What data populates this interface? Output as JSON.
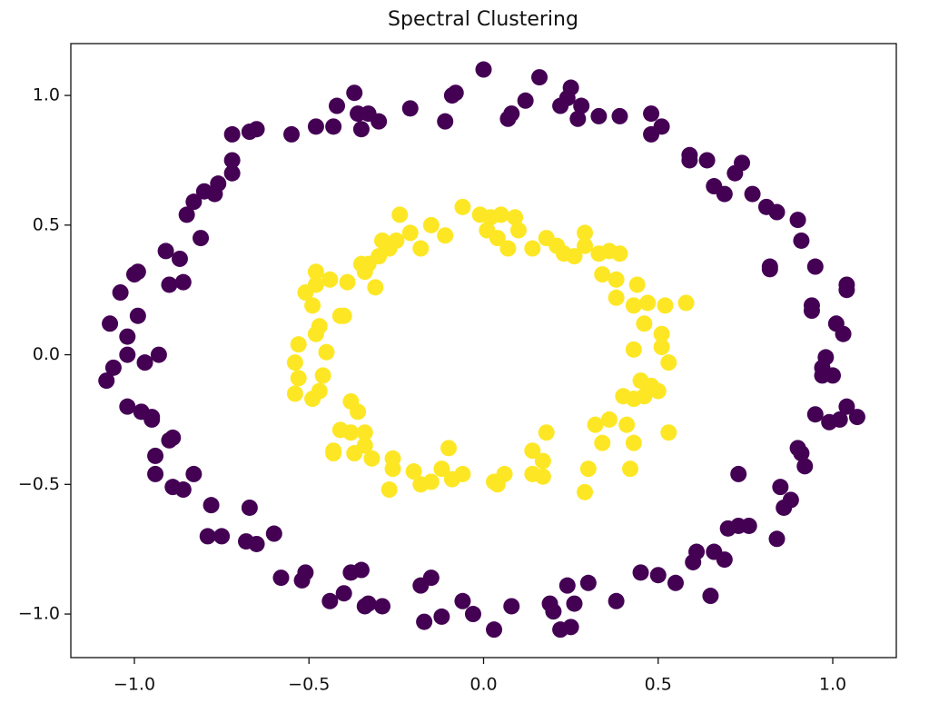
{
  "chart_data": {
    "type": "scatter",
    "title": "Spectral Clustering",
    "xlim": [
      -1.182,
      1.182
    ],
    "ylim": [
      -1.168,
      1.2
    ],
    "xticks": [
      {
        "value": -1.0,
        "label": "−1.0"
      },
      {
        "value": -0.5,
        "label": "−0.5"
      },
      {
        "value": 0.0,
        "label": "0.0"
      },
      {
        "value": 0.5,
        "label": "0.5"
      },
      {
        "value": 1.0,
        "label": "1.0"
      }
    ],
    "yticks": [
      {
        "value": -1.0,
        "label": "−1.0"
      },
      {
        "value": -0.5,
        "label": "−0.5"
      },
      {
        "value": 0.0,
        "label": "0.0"
      },
      {
        "value": 0.5,
        "label": "0.5"
      },
      {
        "value": 1.0,
        "label": "1.0"
      }
    ],
    "series": [
      {
        "color": "#440154",
        "x": [
          0.0,
          0.16,
          0.25,
          0.24,
          0.12,
          0.22,
          0.28,
          0.08,
          0.07,
          0.27,
          0.33,
          0.39,
          0.48,
          0.51,
          0.48,
          -0.08,
          -0.09,
          -0.11,
          -0.21,
          -0.37,
          -0.42,
          -0.36,
          -0.33,
          -0.3,
          -0.35,
          -0.43,
          -0.48,
          -0.55,
          -0.65,
          -0.67,
          -0.72,
          -0.72,
          -0.72,
          -0.76,
          -0.8,
          -0.77,
          -0.83,
          -0.85,
          -0.81,
          -0.91,
          -0.87,
          -0.99,
          -1.0,
          -1.04,
          -0.9,
          -0.86,
          -0.99,
          -1.07,
          -1.02,
          -0.93,
          -1.02,
          -0.97,
          -1.06,
          -1.08,
          -1.02,
          -0.98,
          -0.95,
          -0.95,
          -0.89,
          -0.9,
          -0.94,
          -0.94,
          -0.83,
          -0.89,
          -0.86,
          -0.78,
          -0.67,
          -0.79,
          -0.75,
          -0.68,
          -0.65,
          -0.6,
          -0.58,
          -0.52,
          -0.51,
          -0.38,
          -0.35,
          -0.4,
          -0.44,
          -0.34,
          -0.33,
          -0.29,
          -0.15,
          -0.18,
          -0.17,
          -0.12,
          -0.06,
          -0.03,
          0.03,
          0.08,
          0.19,
          0.2,
          0.22,
          0.25,
          0.24,
          0.26,
          0.3,
          0.38,
          0.45,
          0.5,
          0.55,
          0.65,
          0.6,
          0.61,
          0.66,
          0.69,
          0.7,
          0.73,
          0.76,
          0.84,
          0.86,
          0.88,
          0.85,
          0.73,
          0.92,
          0.9,
          0.91,
          0.95,
          0.99,
          1.02,
          1.04,
          1.07,
          0.97,
          0.97,
          0.98,
          1.0,
          1.03,
          1.01,
          0.94,
          0.94,
          0.95,
          1.04,
          1.04,
          0.82,
          0.82,
          0.91,
          0.9,
          0.84,
          0.81,
          0.77,
          0.69,
          0.66,
          0.72,
          0.74,
          0.64,
          0.59,
          0.59
        ],
        "values": [
          1.1,
          1.07,
          1.03,
          0.99,
          0.98,
          0.96,
          0.96,
          0.93,
          0.91,
          0.91,
          0.92,
          0.92,
          0.93,
          0.88,
          0.85,
          1.01,
          1.0,
          0.9,
          0.95,
          1.01,
          0.96,
          0.93,
          0.93,
          0.9,
          0.87,
          0.88,
          0.88,
          0.85,
          0.87,
          0.86,
          0.85,
          0.75,
          0.7,
          0.66,
          0.63,
          0.62,
          0.59,
          0.54,
          0.45,
          0.4,
          0.37,
          0.32,
          0.31,
          0.24,
          0.27,
          0.28,
          0.15,
          0.12,
          0.07,
          0.0,
          0.0,
          -0.03,
          -0.05,
          -0.1,
          -0.2,
          -0.22,
          -0.24,
          -0.25,
          -0.32,
          -0.33,
          -0.39,
          -0.46,
          -0.46,
          -0.51,
          -0.52,
          -0.58,
          -0.59,
          -0.7,
          -0.7,
          -0.72,
          -0.73,
          -0.69,
          -0.86,
          -0.87,
          -0.84,
          -0.84,
          -0.83,
          -0.92,
          -0.95,
          -0.97,
          -0.96,
          -0.97,
          -0.86,
          -0.89,
          -1.03,
          -1.01,
          -0.95,
          -1.0,
          -1.06,
          -0.97,
          -0.96,
          -0.99,
          -1.06,
          -1.05,
          -0.89,
          -0.96,
          -0.88,
          -0.95,
          -0.84,
          -0.85,
          -0.88,
          -0.93,
          -0.8,
          -0.76,
          -0.76,
          -0.79,
          -0.67,
          -0.66,
          -0.66,
          -0.71,
          -0.59,
          -0.56,
          -0.51,
          -0.46,
          -0.43,
          -0.36,
          -0.38,
          -0.23,
          -0.26,
          -0.25,
          -0.2,
          -0.24,
          -0.08,
          -0.05,
          -0.01,
          -0.08,
          0.08,
          0.12,
          0.17,
          0.19,
          0.34,
          0.25,
          0.27,
          0.34,
          0.33,
          0.44,
          0.52,
          0.55,
          0.57,
          0.62,
          0.62,
          0.65,
          0.7,
          0.74,
          0.75,
          0.77,
          0.75
        ]
      },
      {
        "color": "#fde725",
        "x": [
          -0.06,
          -0.01,
          0.02,
          0.05,
          0.09,
          0.01,
          0.04,
          0.07,
          0.1,
          0.14,
          0.18,
          0.21,
          0.23,
          0.26,
          0.29,
          0.29,
          0.33,
          0.36,
          0.39,
          0.34,
          0.38,
          0.38,
          0.44,
          0.43,
          0.47,
          0.52,
          0.58,
          0.46,
          0.51,
          0.51,
          0.43,
          0.53,
          0.45,
          0.48,
          0.5,
          0.4,
          0.43,
          0.46,
          0.36,
          0.32,
          0.41,
          0.43,
          0.34,
          0.53,
          0.18,
          0.14,
          0.42,
          0.3,
          0.29,
          0.17,
          0.17,
          0.14,
          0.06,
          0.03,
          0.04,
          -0.06,
          -0.1,
          -0.12,
          -0.09,
          -0.15,
          -0.18,
          -0.2,
          -0.26,
          -0.26,
          -0.27,
          -0.32,
          -0.34,
          -0.34,
          -0.38,
          -0.41,
          -0.37,
          -0.43,
          -0.38,
          -0.36,
          -0.43,
          -0.47,
          -0.49,
          -0.54,
          -0.46,
          -0.53,
          -0.54,
          -0.53,
          -0.45,
          -0.48,
          -0.47,
          -0.41,
          -0.4,
          -0.49,
          -0.51,
          -0.48,
          -0.48,
          -0.44,
          -0.39,
          -0.31,
          -0.34,
          -0.33,
          -0.3,
          -0.27,
          -0.25,
          -0.21,
          -0.18,
          -0.24,
          -0.15,
          -0.11,
          -0.29,
          -0.35
        ],
        "values": [
          0.57,
          0.54,
          0.53,
          0.54,
          0.53,
          0.48,
          0.45,
          0.41,
          0.48,
          0.41,
          0.45,
          0.42,
          0.39,
          0.38,
          0.47,
          0.42,
          0.39,
          0.4,
          0.39,
          0.31,
          0.29,
          0.22,
          0.27,
          0.19,
          0.2,
          0.19,
          0.2,
          0.12,
          0.08,
          0.03,
          0.02,
          -0.03,
          -0.1,
          -0.12,
          -0.14,
          -0.16,
          -0.17,
          -0.16,
          -0.25,
          -0.27,
          -0.27,
          -0.34,
          -0.34,
          -0.3,
          -0.3,
          -0.37,
          -0.44,
          -0.44,
          -0.53,
          -0.41,
          -0.47,
          -0.46,
          -0.46,
          -0.49,
          -0.5,
          -0.46,
          -0.36,
          -0.44,
          -0.48,
          -0.49,
          -0.5,
          -0.45,
          -0.4,
          -0.44,
          -0.52,
          -0.4,
          -0.3,
          -0.35,
          -0.3,
          -0.29,
          -0.38,
          -0.37,
          -0.18,
          -0.22,
          -0.38,
          -0.14,
          -0.17,
          -0.15,
          -0.08,
          -0.09,
          -0.03,
          0.04,
          0.01,
          0.08,
          0.11,
          0.15,
          0.15,
          0.19,
          0.24,
          0.27,
          0.32,
          0.29,
          0.28,
          0.26,
          0.32,
          0.35,
          0.38,
          0.41,
          0.44,
          0.47,
          0.41,
          0.54,
          0.5,
          0.46,
          0.44,
          0.35
        ]
      }
    ]
  }
}
